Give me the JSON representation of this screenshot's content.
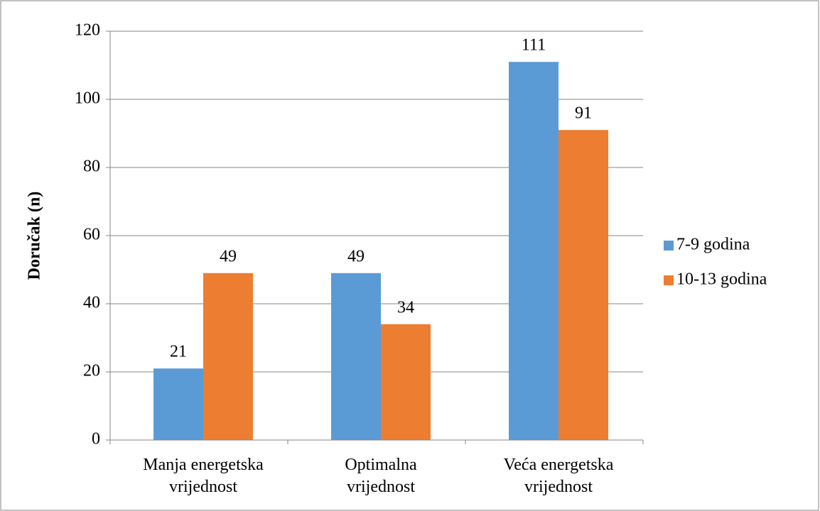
{
  "chart_data": {
    "type": "bar",
    "y_label": "Doručak (n)",
    "categories": [
      "Manja energetska vrijednost",
      "Optimalna vrijednost",
      "Veća energetska vrijednost"
    ],
    "series": [
      {
        "name": "7-9 godina",
        "color": "#5b9bd5",
        "values": [
          21,
          49,
          111
        ]
      },
      {
        "name": "10-13 godina",
        "color": "#ed7d31",
        "values": [
          49,
          34,
          91
        ]
      }
    ],
    "ylim": [
      0,
      120
    ],
    "yticks": [
      0,
      20,
      40,
      60,
      80,
      100,
      120
    ],
    "grid": true,
    "legend": "right"
  }
}
